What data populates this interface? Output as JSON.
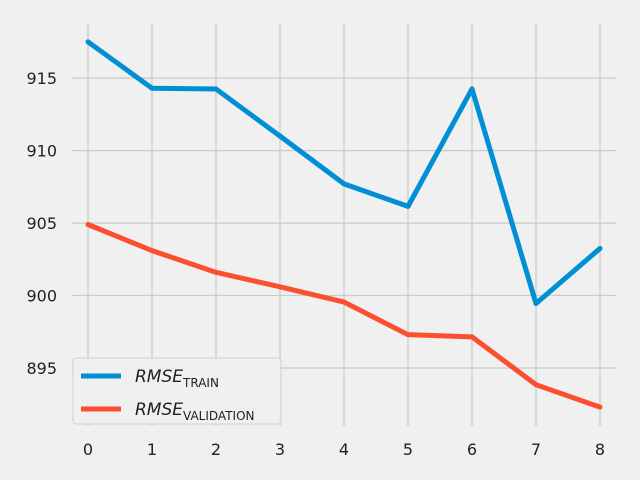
{
  "chart_data": {
    "type": "line",
    "x": [
      0,
      1,
      2,
      3,
      4,
      5,
      6,
      7,
      8
    ],
    "series": [
      {
        "name_main": "RMSE",
        "name_sub": "TRAIN",
        "color": "#008fd5",
        "values": [
          917.5,
          914.3,
          914.25,
          911.0,
          907.7,
          906.15,
          914.25,
          899.45,
          903.25
        ]
      },
      {
        "name_main": "RMSE",
        "name_sub": "VALIDATION",
        "color": "#fc4f30",
        "values": [
          904.9,
          903.1,
          901.6,
          900.6,
          899.55,
          897.3,
          897.15,
          893.85,
          892.3
        ]
      }
    ],
    "xticks": [
      "0",
      "1",
      "2",
      "3",
      "4",
      "5",
      "6",
      "7",
      "8"
    ],
    "yticks": [
      "895",
      "900",
      "905",
      "910",
      "915"
    ],
    "xlim": [
      -0.25,
      8.25
    ],
    "ylim": [
      891.0,
      918.8
    ],
    "grid": true,
    "legend_position": "lower-left",
    "background": "#f0f0f0",
    "grid_color": "#cbcbcb"
  }
}
